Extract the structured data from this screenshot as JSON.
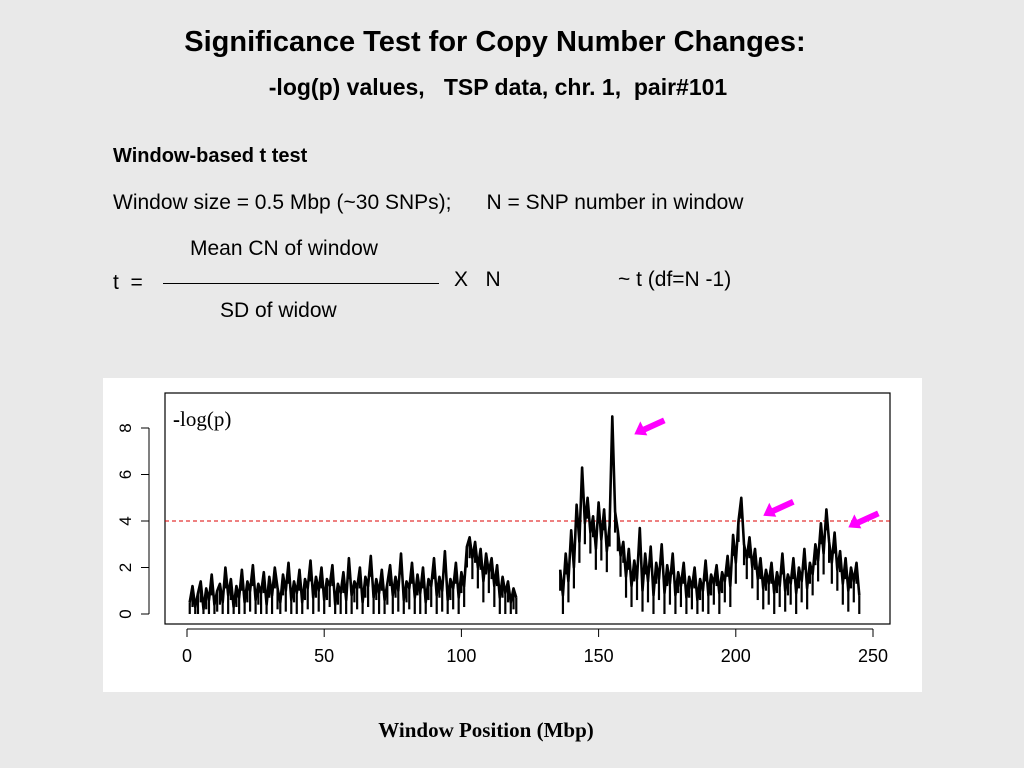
{
  "slide": {
    "title": "Significance Test for Copy Number Changes:",
    "subtitle": "-log(p) values,   TSP data, chr. 1,  pair#101"
  },
  "method": {
    "heading": "Window-based t test",
    "window_line": "Window size = 0.5 Mbp (~30 SNPs);      N = SNP number in window",
    "formula": {
      "lhs": "t  =",
      "numerator": "Mean CN of window",
      "denominator": "SD of widow",
      "times": "X   N",
      "distribution": "~ t (df=N -1)"
    }
  },
  "chart_data": {
    "type": "line",
    "title": "",
    "xlabel": "Window  Position (Mbp)",
    "ylabel": "",
    "inner_label": {
      "prefix": "-",
      "text": "log(p)"
    },
    "xlim": [
      0,
      250
    ],
    "ylim": [
      0,
      8
    ],
    "x_ticks": [
      0,
      50,
      100,
      150,
      200,
      250
    ],
    "y_ticks": [
      0,
      2,
      4,
      6,
      8
    ],
    "threshold": {
      "value": 4,
      "color": "#dd0000",
      "style": "dashed"
    },
    "line_color": "#000000",
    "arrow_color": "#ff00ff",
    "grid": false,
    "gap": [
      121,
      135
    ],
    "series": [
      {
        "name": "",
        "points": [
          [
            1,
            0.5
          ],
          [
            2,
            1.2
          ],
          [
            3,
            0.3
          ],
          [
            4,
            0.9
          ],
          [
            5,
            1.4
          ],
          [
            6,
            0.2
          ],
          [
            7,
            1.1
          ],
          [
            8,
            0.6
          ],
          [
            9,
            1.7
          ],
          [
            10,
            0.4
          ],
          [
            11,
            1.0
          ],
          [
            12,
            1.3
          ],
          [
            13,
            0.5
          ],
          [
            14,
            2.0
          ],
          [
            15,
            0.8
          ],
          [
            16,
            1.5
          ],
          [
            17,
            0.3
          ],
          [
            18,
            1.2
          ],
          [
            19,
            0.7
          ],
          [
            20,
            1.9
          ],
          [
            21,
            0.5
          ],
          [
            22,
            1.4
          ],
          [
            23,
            1.0
          ],
          [
            24,
            2.1
          ],
          [
            25,
            0.6
          ],
          [
            26,
            1.3
          ],
          [
            27,
            0.9
          ],
          [
            28,
            1.8
          ],
          [
            29,
            0.4
          ],
          [
            30,
            1.6
          ],
          [
            31,
            0.8
          ],
          [
            32,
            2.0
          ],
          [
            33,
            1.1
          ],
          [
            34,
            0.5
          ],
          [
            35,
            1.7
          ],
          [
            36,
            1.0
          ],
          [
            37,
            2.2
          ],
          [
            38,
            0.6
          ],
          [
            39,
            1.4
          ],
          [
            40,
            0.9
          ],
          [
            41,
            1.9
          ],
          [
            42,
            0.5
          ],
          [
            43,
            1.5
          ],
          [
            44,
            1.1
          ],
          [
            45,
            2.3
          ],
          [
            46,
            0.7
          ],
          [
            47,
            1.6
          ],
          [
            48,
            1.0
          ],
          [
            49,
            2.0
          ],
          [
            50,
            0.6
          ],
          [
            51,
            1.5
          ],
          [
            52,
            1.2
          ],
          [
            53,
            2.1
          ],
          [
            54,
            0.4
          ],
          [
            55,
            1.3
          ],
          [
            56,
            0.9
          ],
          [
            57,
            1.8
          ],
          [
            58,
            0.6
          ],
          [
            59,
            2.4
          ],
          [
            60,
            0.8
          ],
          [
            61,
            1.4
          ],
          [
            62,
            1.1
          ],
          [
            63,
            2.0
          ],
          [
            64,
            0.5
          ],
          [
            65,
            1.6
          ],
          [
            66,
            1.2
          ],
          [
            67,
            2.5
          ],
          [
            68,
            0.7
          ],
          [
            69,
            1.5
          ],
          [
            70,
            0.9
          ],
          [
            71,
            1.9
          ],
          [
            72,
            0.6
          ],
          [
            73,
            1.3
          ],
          [
            74,
            2.1
          ],
          [
            75,
            0.8
          ],
          [
            76,
            1.6
          ],
          [
            77,
            1.0
          ],
          [
            78,
            2.6
          ],
          [
            79,
            0.6
          ],
          [
            80,
            1.4
          ],
          [
            81,
            1.1
          ],
          [
            82,
            2.2
          ],
          [
            83,
            0.7
          ],
          [
            84,
            1.7
          ],
          [
            85,
            0.9
          ],
          [
            86,
            2.0
          ],
          [
            87,
            0.5
          ],
          [
            88,
            1.5
          ],
          [
            89,
            1.2
          ],
          [
            90,
            2.4
          ],
          [
            91,
            0.8
          ],
          [
            92,
            1.6
          ],
          [
            93,
            1.0
          ],
          [
            94,
            2.7
          ],
          [
            95,
            0.6
          ],
          [
            96,
            1.5
          ],
          [
            97,
            1.1
          ],
          [
            98,
            2.2
          ],
          [
            99,
            0.7
          ],
          [
            100,
            1.8
          ],
          [
            101,
            1.2
          ],
          [
            102,
            2.9
          ],
          [
            103,
            3.3
          ],
          [
            104,
            2.4
          ],
          [
            105,
            3.1
          ],
          [
            106,
            2.0
          ],
          [
            107,
            2.8
          ],
          [
            108,
            1.4
          ],
          [
            109,
            2.6
          ],
          [
            110,
            1.8
          ],
          [
            111,
            2.4
          ],
          [
            112,
            1.2
          ],
          [
            113,
            2.1
          ],
          [
            114,
            0.7
          ],
          [
            115,
            1.6
          ],
          [
            116,
            0.9
          ],
          [
            117,
            1.4
          ],
          [
            118,
            0.5
          ],
          [
            119,
            1.1
          ],
          [
            120,
            0.7
          ],
          [
            136,
            1.9
          ],
          [
            137,
            0.8
          ],
          [
            138,
            2.6
          ],
          [
            139,
            1.4
          ],
          [
            140,
            3.6
          ],
          [
            141,
            2.0
          ],
          [
            142,
            4.7
          ],
          [
            143,
            3.1
          ],
          [
            144,
            6.3
          ],
          [
            145,
            3.9
          ],
          [
            146,
            5.0
          ],
          [
            147,
            3.5
          ],
          [
            148,
            4.2
          ],
          [
            149,
            2.8
          ],
          [
            150,
            4.8
          ],
          [
            151,
            3.2
          ],
          [
            152,
            4.5
          ],
          [
            153,
            2.7
          ],
          [
            154,
            3.8
          ],
          [
            155,
            8.5
          ],
          [
            156,
            4.4
          ],
          [
            157,
            3.6
          ],
          [
            158,
            2.5
          ],
          [
            159,
            3.1
          ],
          [
            160,
            1.6
          ],
          [
            161,
            2.8
          ],
          [
            162,
            1.2
          ],
          [
            163,
            2.3
          ],
          [
            164,
            1.5
          ],
          [
            165,
            3.7
          ],
          [
            166,
            1.0
          ],
          [
            167,
            2.6
          ],
          [
            168,
            1.4
          ],
          [
            169,
            2.9
          ],
          [
            170,
            0.8
          ],
          [
            171,
            2.2
          ],
          [
            172,
            1.5
          ],
          [
            173,
            3.0
          ],
          [
            174,
            0.9
          ],
          [
            175,
            2.1
          ],
          [
            176,
            1.3
          ],
          [
            177,
            2.6
          ],
          [
            178,
            0.8
          ],
          [
            179,
            1.8
          ],
          [
            180,
            1.2
          ],
          [
            181,
            2.2
          ],
          [
            182,
            0.7
          ],
          [
            183,
            1.6
          ],
          [
            184,
            1.1
          ],
          [
            185,
            2.0
          ],
          [
            186,
            0.6
          ],
          [
            187,
            1.5
          ],
          [
            188,
            1.0
          ],
          [
            189,
            2.3
          ],
          [
            190,
            0.8
          ],
          [
            191,
            1.7
          ],
          [
            192,
            1.3
          ],
          [
            193,
            2.1
          ],
          [
            194,
            0.9
          ],
          [
            195,
            1.8
          ],
          [
            196,
            1.4
          ],
          [
            197,
            2.5
          ],
          [
            198,
            1.2
          ],
          [
            199,
            3.4
          ],
          [
            200,
            2.2
          ],
          [
            201,
            4.0
          ],
          [
            202,
            5.0
          ],
          [
            203,
            3.0
          ],
          [
            204,
            2.4
          ],
          [
            205,
            3.3
          ],
          [
            206,
            2.0
          ],
          [
            207,
            2.8
          ],
          [
            208,
            1.5
          ],
          [
            209,
            2.4
          ],
          [
            210,
            1.1
          ],
          [
            211,
            1.9
          ],
          [
            212,
            1.3
          ],
          [
            213,
            2.2
          ],
          [
            214,
            0.9
          ],
          [
            215,
            1.8
          ],
          [
            216,
            1.2
          ],
          [
            217,
            2.6
          ],
          [
            218,
            1.0
          ],
          [
            219,
            1.7
          ],
          [
            220,
            1.3
          ],
          [
            221,
            2.4
          ],
          [
            222,
            0.9
          ],
          [
            223,
            2.0
          ],
          [
            224,
            1.4
          ],
          [
            225,
            2.8
          ],
          [
            226,
            1.1
          ],
          [
            227,
            2.2
          ],
          [
            228,
            1.7
          ],
          [
            229,
            3.0
          ],
          [
            230,
            2.3
          ],
          [
            231,
            3.9
          ],
          [
            232,
            2.6
          ],
          [
            233,
            4.5
          ],
          [
            234,
            3.1
          ],
          [
            235,
            2.2
          ],
          [
            236,
            3.5
          ],
          [
            237,
            1.9
          ],
          [
            238,
            2.7
          ],
          [
            239,
            1.3
          ],
          [
            240,
            2.4
          ],
          [
            241,
            1.0
          ],
          [
            242,
            2.0
          ],
          [
            243,
            1.4
          ],
          [
            244,
            2.2
          ],
          [
            245,
            0.8
          ]
        ]
      }
    ],
    "arrows_point_to": [
      {
        "x": 155,
        "y": 8.5
      },
      {
        "x": 202,
        "y": 5.0
      },
      {
        "x": 233,
        "y": 4.5
      }
    ]
  }
}
